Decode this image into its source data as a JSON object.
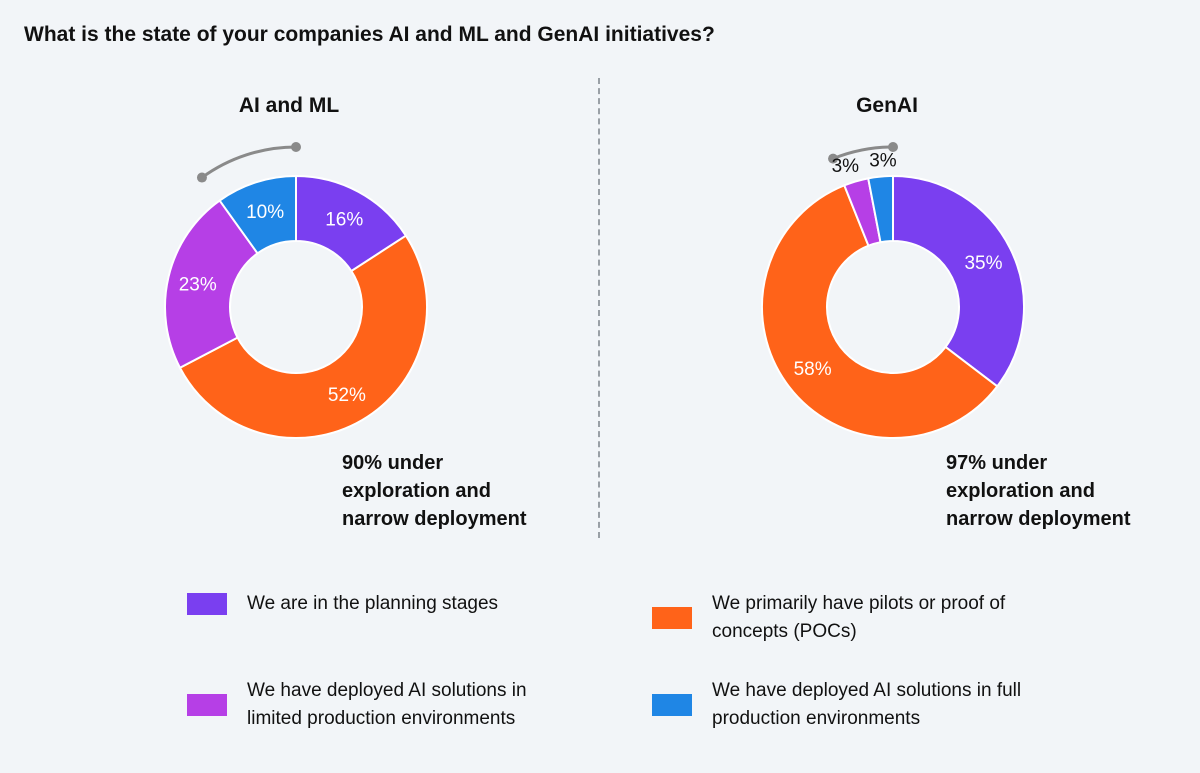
{
  "title": "What is the state of your companies AI and ML and GenAI initiatives?",
  "colors": {
    "planning": "#7a3ff0",
    "pilots": "#ff6319",
    "limited": "#b63fe6",
    "full": "#1f86e5",
    "bracket": "#8a8a8a"
  },
  "legend": [
    {
      "key": "planning",
      "label": "We are in the planning stages",
      "color": "#7a3ff0"
    },
    {
      "key": "pilots",
      "label": "We primarily have pilots or proof of concepts (POCs)",
      "color": "#ff6319"
    },
    {
      "key": "limited",
      "label": "We have deployed AI solutions in limited production environments",
      "color": "#b63fe6"
    },
    {
      "key": "full",
      "label": "We have deployed AI solutions in full production environments",
      "color": "#1f86e5"
    }
  ],
  "callouts": [
    {
      "lines": [
        "90% under",
        "exploration and",
        "narrow deployment"
      ]
    },
    {
      "lines": [
        "97% under",
        "exploration and",
        "narrow deployment"
      ]
    }
  ],
  "chart_data": [
    {
      "type": "pie",
      "title": "AI and ML",
      "categories": [
        "We are in the planning stages",
        "We primarily have pilots or proof of concepts (POCs)",
        "We have deployed AI solutions in limited production environments",
        "We have deployed AI solutions in full production environments"
      ],
      "values": [
        16,
        52,
        23,
        10
      ],
      "labels": [
        "16%",
        "52%",
        "23%",
        "10%"
      ],
      "label_colors": [
        "#ffffff",
        "#ffffff",
        "#ffffff",
        "#ffffff"
      ]
    },
    {
      "type": "pie",
      "title": "GenAI",
      "categories": [
        "We are in the planning stages",
        "We primarily have pilots or proof of concepts (POCs)",
        "We have deployed AI solutions in limited production environments",
        "We have deployed AI solutions in full production environments"
      ],
      "values": [
        35,
        58,
        3,
        3
      ],
      "labels": [
        "35%",
        "58%",
        "3%",
        "3%"
      ],
      "label_colors": [
        "#ffffff",
        "#ffffff",
        "#111111",
        "#111111"
      ]
    }
  ]
}
